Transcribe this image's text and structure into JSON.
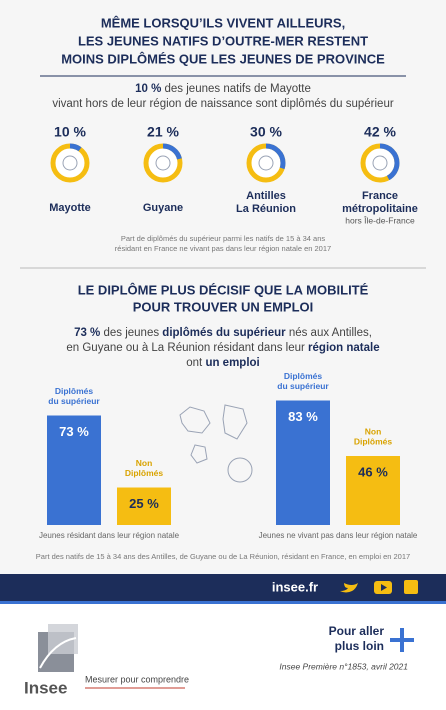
{
  "header": {
    "title_lines": [
      "MÊME LORSQU’ILS VIVENT AILLEURS,",
      "LES JEUNES NATIFS D’OUTRE-MER RESTENT",
      "MOINS DIPLÔMÉS QUE LES JEUNES DE PROVINCE"
    ]
  },
  "chart_data": [
    {
      "type": "donut",
      "lead": [
        [
          {
            "text": "10 %",
            "bold": true
          },
          {
            "text": " des jeunes natifs de Mayotte",
            "bold": false
          }
        ],
        [
          {
            "text": "vivant hors de leur région de naissance sont diplômés du supérieur",
            "bold": false
          }
        ]
      ],
      "categories": [
        [
          "Mayotte"
        ],
        [
          "Guyane"
        ],
        [
          "Antilles",
          "La Réunion"
        ],
        [
          "France",
          "métropolitaine"
        ]
      ],
      "category_notes": [
        null,
        null,
        null,
        "hors Île-de-France"
      ],
      "values": [
        10,
        21,
        30,
        42
      ],
      "value_labels": [
        "10 %",
        "21 %",
        "30 %",
        "42 %"
      ],
      "color": "#3a72d2",
      "track_color": "#f5bd12",
      "footnote": [
        "Part de diplômés du supérieur parmi les natifs de 15 à 34 ans",
        "résidant en France ne vivant pas dans leur région natale en 2017"
      ]
    },
    {
      "type": "bar",
      "title_lines": [
        "LE DIPLÔME PLUS DÉCISIF QUE LA MOBILITÉ",
        "POUR TROUVER UN EMPLOI"
      ],
      "lead": [
        [
          {
            "text": "73 %",
            "bold": true
          },
          {
            "text": " des jeunes ",
            "bold": false
          },
          {
            "text": "diplômés du supérieur",
            "bold": true
          },
          {
            "text": " nés aux Antilles,",
            "bold": false
          }
        ],
        [
          {
            "text": "en Guyane ou à La Réunion résidant dans leur ",
            "bold": false
          },
          {
            "text": "région natale",
            "bold": true
          }
        ],
        [
          {
            "text": "ont ",
            "bold": false
          },
          {
            "text": "un emploi",
            "bold": true
          }
        ]
      ],
      "categories": [
        "Jeunes résidant dans leur région natale",
        "Jeunes ne vivant pas dans leur région natale"
      ],
      "series": [
        {
          "name": [
            "Diplômés",
            "du supérieur"
          ],
          "color": "#3a72d2",
          "values": [
            73,
            83
          ],
          "value_labels": [
            "73 %",
            "83 %"
          ]
        },
        {
          "name": [
            "Non",
            "Diplômés"
          ],
          "color": "#f5bd12",
          "values": [
            25,
            46
          ],
          "value_labels": [
            "25 %",
            "46 %"
          ]
        }
      ],
      "footnote": "Part des natifs de 15 à 34 ans des Antilles, de Guyane ou de La Réunion, résidant en France, en emploi en 2017"
    }
  ],
  "footer": {
    "site": "insee.fr",
    "logo": "Insee",
    "tagline": "Mesurer pour comprendre",
    "more": [
      "Pour aller",
      "plus loin"
    ],
    "reference": "Insee Première n°1853, avril 2021"
  }
}
